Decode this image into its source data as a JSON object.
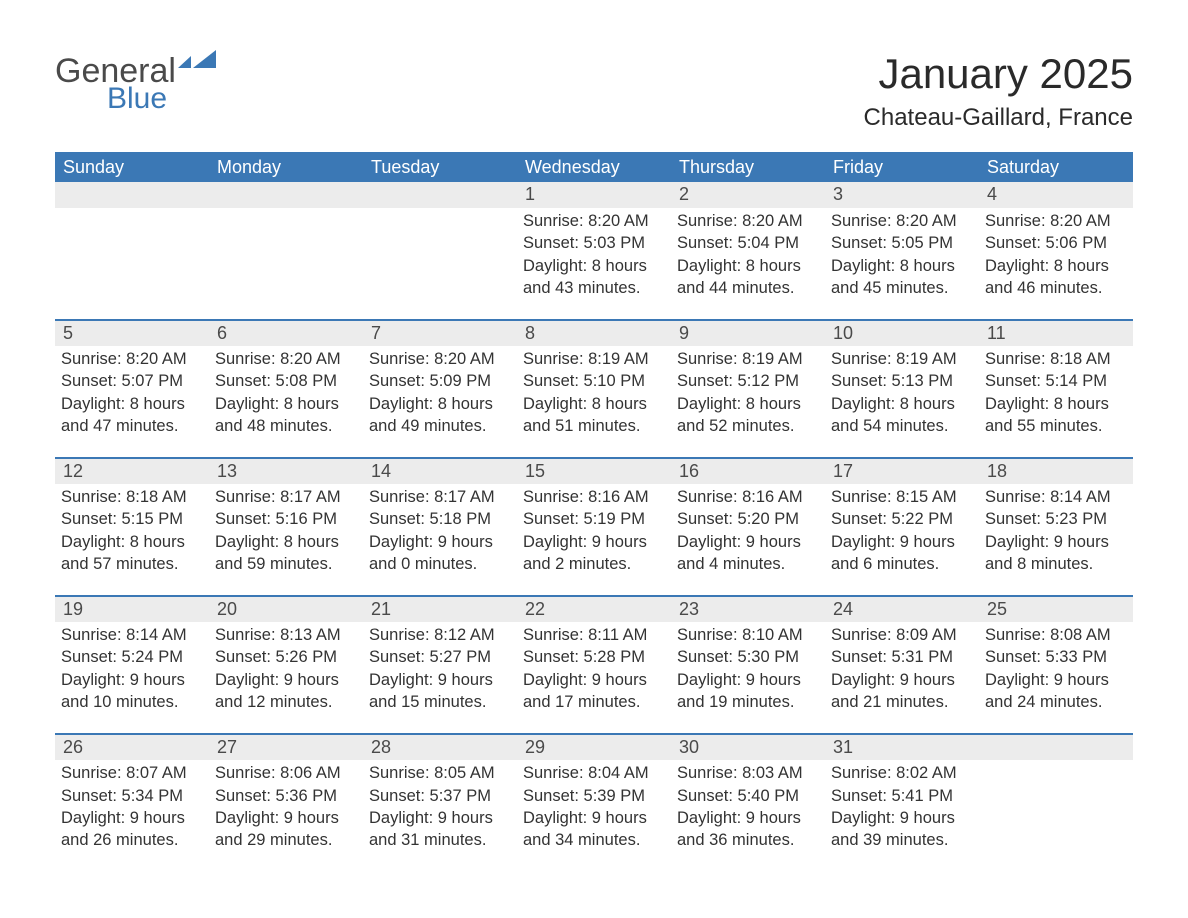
{
  "logo": {
    "main": "General",
    "accent": "Blue",
    "main_color": "#4a4a4a",
    "accent_color": "#3b78b5"
  },
  "title": "January 2025",
  "subtitle": "Chateau-Gaillard, France",
  "header_bg": "#3b78b5",
  "header_fg": "#ffffff",
  "daynum_bg": "#ececec",
  "daynum_border": "#3b78b5",
  "text_color": "#333333",
  "days_of_week": [
    "Sunday",
    "Monday",
    "Tuesday",
    "Wednesday",
    "Thursday",
    "Friday",
    "Saturday"
  ],
  "weeks": [
    [
      null,
      null,
      null,
      {
        "n": "1",
        "sunrise": "8:20 AM",
        "sunset": "5:03 PM",
        "daylight": "8 hours and 43 minutes."
      },
      {
        "n": "2",
        "sunrise": "8:20 AM",
        "sunset": "5:04 PM",
        "daylight": "8 hours and 44 minutes."
      },
      {
        "n": "3",
        "sunrise": "8:20 AM",
        "sunset": "5:05 PM",
        "daylight": "8 hours and 45 minutes."
      },
      {
        "n": "4",
        "sunrise": "8:20 AM",
        "sunset": "5:06 PM",
        "daylight": "8 hours and 46 minutes."
      }
    ],
    [
      {
        "n": "5",
        "sunrise": "8:20 AM",
        "sunset": "5:07 PM",
        "daylight": "8 hours and 47 minutes."
      },
      {
        "n": "6",
        "sunrise": "8:20 AM",
        "sunset": "5:08 PM",
        "daylight": "8 hours and 48 minutes."
      },
      {
        "n": "7",
        "sunrise": "8:20 AM",
        "sunset": "5:09 PM",
        "daylight": "8 hours and 49 minutes."
      },
      {
        "n": "8",
        "sunrise": "8:19 AM",
        "sunset": "5:10 PM",
        "daylight": "8 hours and 51 minutes."
      },
      {
        "n": "9",
        "sunrise": "8:19 AM",
        "sunset": "5:12 PM",
        "daylight": "8 hours and 52 minutes."
      },
      {
        "n": "10",
        "sunrise": "8:19 AM",
        "sunset": "5:13 PM",
        "daylight": "8 hours and 54 minutes."
      },
      {
        "n": "11",
        "sunrise": "8:18 AM",
        "sunset": "5:14 PM",
        "daylight": "8 hours and 55 minutes."
      }
    ],
    [
      {
        "n": "12",
        "sunrise": "8:18 AM",
        "sunset": "5:15 PM",
        "daylight": "8 hours and 57 minutes."
      },
      {
        "n": "13",
        "sunrise": "8:17 AM",
        "sunset": "5:16 PM",
        "daylight": "8 hours and 59 minutes."
      },
      {
        "n": "14",
        "sunrise": "8:17 AM",
        "sunset": "5:18 PM",
        "daylight": "9 hours and 0 minutes."
      },
      {
        "n": "15",
        "sunrise": "8:16 AM",
        "sunset": "5:19 PM",
        "daylight": "9 hours and 2 minutes."
      },
      {
        "n": "16",
        "sunrise": "8:16 AM",
        "sunset": "5:20 PM",
        "daylight": "9 hours and 4 minutes."
      },
      {
        "n": "17",
        "sunrise": "8:15 AM",
        "sunset": "5:22 PM",
        "daylight": "9 hours and 6 minutes."
      },
      {
        "n": "18",
        "sunrise": "8:14 AM",
        "sunset": "5:23 PM",
        "daylight": "9 hours and 8 minutes."
      }
    ],
    [
      {
        "n": "19",
        "sunrise": "8:14 AM",
        "sunset": "5:24 PM",
        "daylight": "9 hours and 10 minutes."
      },
      {
        "n": "20",
        "sunrise": "8:13 AM",
        "sunset": "5:26 PM",
        "daylight": "9 hours and 12 minutes."
      },
      {
        "n": "21",
        "sunrise": "8:12 AM",
        "sunset": "5:27 PM",
        "daylight": "9 hours and 15 minutes."
      },
      {
        "n": "22",
        "sunrise": "8:11 AM",
        "sunset": "5:28 PM",
        "daylight": "9 hours and 17 minutes."
      },
      {
        "n": "23",
        "sunrise": "8:10 AM",
        "sunset": "5:30 PM",
        "daylight": "9 hours and 19 minutes."
      },
      {
        "n": "24",
        "sunrise": "8:09 AM",
        "sunset": "5:31 PM",
        "daylight": "9 hours and 21 minutes."
      },
      {
        "n": "25",
        "sunrise": "8:08 AM",
        "sunset": "5:33 PM",
        "daylight": "9 hours and 24 minutes."
      }
    ],
    [
      {
        "n": "26",
        "sunrise": "8:07 AM",
        "sunset": "5:34 PM",
        "daylight": "9 hours and 26 minutes."
      },
      {
        "n": "27",
        "sunrise": "8:06 AM",
        "sunset": "5:36 PM",
        "daylight": "9 hours and 29 minutes."
      },
      {
        "n": "28",
        "sunrise": "8:05 AM",
        "sunset": "5:37 PM",
        "daylight": "9 hours and 31 minutes."
      },
      {
        "n": "29",
        "sunrise": "8:04 AM",
        "sunset": "5:39 PM",
        "daylight": "9 hours and 34 minutes."
      },
      {
        "n": "30",
        "sunrise": "8:03 AM",
        "sunset": "5:40 PM",
        "daylight": "9 hours and 36 minutes."
      },
      {
        "n": "31",
        "sunrise": "8:02 AM",
        "sunset": "5:41 PM",
        "daylight": "9 hours and 39 minutes."
      },
      null
    ]
  ],
  "labels": {
    "sunrise": "Sunrise: ",
    "sunset": "Sunset: ",
    "daylight": "Daylight: "
  }
}
